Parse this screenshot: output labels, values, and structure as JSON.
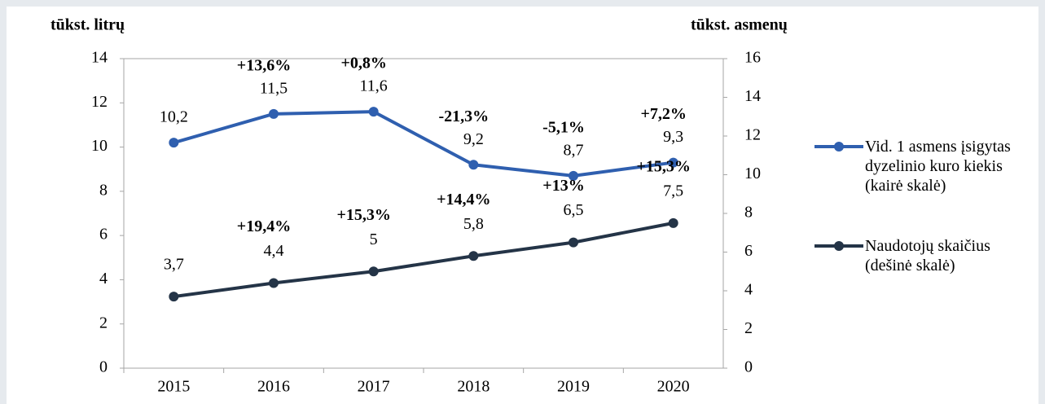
{
  "chart_data": {
    "type": "line",
    "ylabel": "tūkst. litrų",
    "y2label": "tūkst. asmenų",
    "categories": [
      "2015",
      "2016",
      "2017",
      "2018",
      "2019",
      "2020"
    ],
    "series": [
      {
        "name": "Vid. 1 asmens įsigytas dyzelinio kuro kiekis (kairė skalė)",
        "color": "#2f5faf",
        "values": [
          10.2,
          11.5,
          11.6,
          9.2,
          8.7,
          9.3
        ],
        "value_labels": [
          "10,2",
          "11,5",
          "11,6",
          "9,2",
          "8,7",
          "9,3"
        ],
        "change_labels": [
          null,
          "+13,6%",
          "+0,8%",
          "-21,3%",
          "-5,1%",
          "+7,2%"
        ]
      },
      {
        "name": "Naudotojų skaičius (dešinė skalė)",
        "color": "#243447",
        "axis": "y2",
        "values": [
          3.7,
          4.4,
          5,
          5.8,
          6.5,
          7.5
        ],
        "value_labels": [
          "3,7",
          "4,4",
          "5",
          "5,8",
          "6,5",
          "7,5"
        ],
        "change_labels": [
          null,
          "+19,4%",
          "+15,3%",
          "+14,4%",
          "+13%",
          "+15,3%"
        ]
      }
    ],
    "ylim": [
      0,
      14
    ],
    "yticks": [
      0,
      2,
      4,
      6,
      8,
      10,
      12,
      14
    ],
    "y2lim": [
      0,
      16
    ],
    "y2ticks": [
      0,
      2,
      4,
      6,
      8,
      10,
      12,
      14,
      16
    ],
    "grid": false,
    "legend": "right"
  }
}
